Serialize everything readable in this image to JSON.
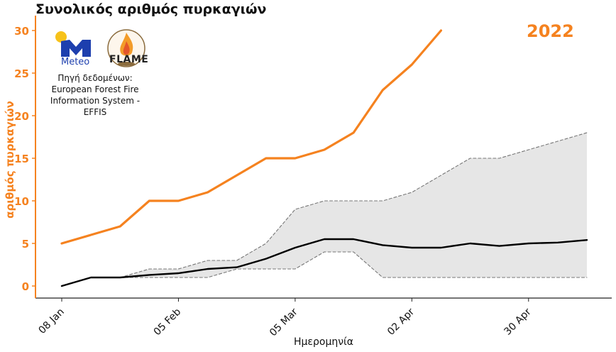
{
  "chart_data": {
    "type": "line",
    "title": "Συνολικός αριθμός πυρκαγιών",
    "year_label": "2022",
    "xlabel": "Ημερομηνία",
    "ylabel": "αριθμός πυρκαγιών",
    "ylim": [
      0,
      30
    ],
    "xlim": [
      "2022-01-08",
      "2022-05-14"
    ],
    "yticks": [
      0,
      5,
      10,
      15,
      20,
      25,
      30
    ],
    "xticks": [
      {
        "date": "2022-01-08",
        "label": "08 Jan"
      },
      {
        "date": "2022-02-05",
        "label": "05 Feb"
      },
      {
        "date": "2022-03-05",
        "label": "05 Mar"
      },
      {
        "date": "2022-04-02",
        "label": "02 Apr"
      },
      {
        "date": "2022-04-30",
        "label": "30 Apr"
      }
    ],
    "x_dates": [
      "2022-01-08",
      "2022-01-15",
      "2022-01-22",
      "2022-01-29",
      "2022-02-05",
      "2022-02-12",
      "2022-02-19",
      "2022-02-26",
      "2022-03-05",
      "2022-03-12",
      "2022-03-19",
      "2022-03-26",
      "2022-04-02",
      "2022-04-09",
      "2022-04-16",
      "2022-04-23",
      "2022-04-30",
      "2022-05-07",
      "2022-05-14"
    ],
    "series": [
      {
        "color": "#f5821f",
        "values": [
          5,
          6,
          7,
          10,
          10,
          11,
          13,
          15,
          15,
          16,
          18,
          23,
          26,
          30
        ]
      },
      {
        "color": "#000000",
        "values": [
          0,
          1,
          1,
          1.3,
          1.5,
          2,
          2.2,
          3.2,
          4.5,
          5.5,
          5.5,
          4.8,
          4.5,
          4.5,
          5,
          4.7,
          5,
          5.1,
          5.4
        ]
      },
      {
        "color": "#777777",
        "values": [
          0,
          1,
          1,
          2,
          2,
          3,
          3,
          5,
          9,
          10,
          10,
          10,
          11,
          13,
          15,
          15,
          16,
          17,
          18
        ]
      },
      {
        "color": "#777777",
        "values": [
          0,
          1,
          1,
          1,
          1,
          1,
          2,
          2,
          2,
          4,
          4,
          1,
          1,
          1,
          1,
          1,
          1,
          1,
          1
        ]
      }
    ],
    "band_color": "#e6e6e6",
    "grid": false,
    "accent_color": "#f5821f"
  },
  "logos": {
    "meteo": "Meteo",
    "flame": "FLAME"
  },
  "source_text": "Πηγή δεδομένων: European Forest Fire Information System - EFFIS"
}
